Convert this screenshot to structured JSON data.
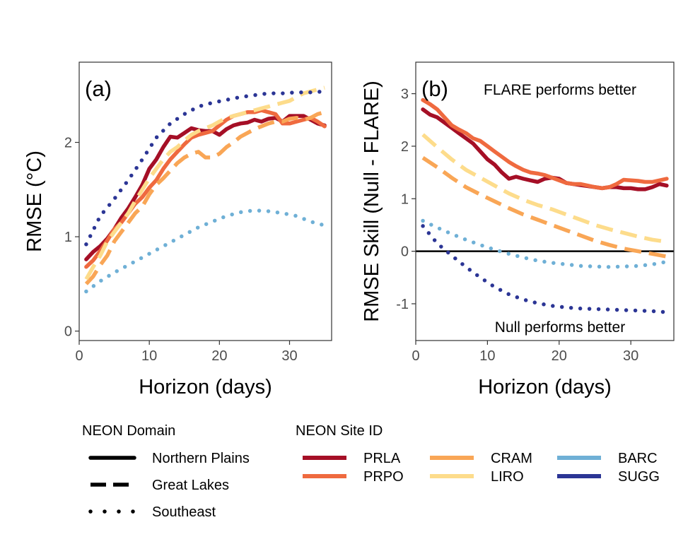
{
  "palette": {
    "PRLA": "#a50f26",
    "PRPO": "#ef6a3f",
    "CRAM": "#f9a656",
    "LIRO": "#fddc8b",
    "BARC": "#6fb0d6",
    "SUGG": "#2b3595"
  },
  "chart_data": [
    {
      "type": "line",
      "panel_label": "(a)",
      "xlabel": "Horizon (days)",
      "ylabel": "RMSE (°C)",
      "xlim": [
        0,
        36
      ],
      "ylim": [
        -0.1,
        2.85
      ],
      "xticks": [
        0,
        10,
        20,
        30
      ],
      "yticks": [
        0,
        1,
        2
      ],
      "grid": false,
      "series": [
        {
          "name": "PRLA",
          "domain": "Northern Plains",
          "style": "solid",
          "x": [
            1,
            2,
            3,
            4,
            5,
            6,
            7,
            8,
            9,
            10,
            11,
            12,
            13,
            14,
            15,
            16,
            17,
            18,
            19,
            20,
            21,
            22,
            23,
            24,
            25,
            26,
            27,
            28,
            29,
            30,
            31,
            32,
            33,
            34,
            35
          ],
          "y": [
            0.76,
            0.84,
            0.9,
            0.98,
            1.08,
            1.2,
            1.3,
            1.42,
            1.55,
            1.72,
            1.82,
            1.95,
            2.06,
            2.05,
            2.1,
            2.15,
            2.13,
            2.12,
            2.12,
            2.08,
            2.14,
            2.18,
            2.2,
            2.21,
            2.24,
            2.22,
            2.25,
            2.26,
            2.22,
            2.28,
            2.28,
            2.28,
            2.24,
            2.2,
            2.18
          ]
        },
        {
          "name": "PRPO",
          "domain": "Northern Plains",
          "style": "solid",
          "x": [
            1,
            2,
            3,
            4,
            5,
            6,
            7,
            8,
            9,
            10,
            11,
            12,
            13,
            14,
            15,
            16,
            17,
            18,
            19,
            20,
            21,
            22,
            23,
            24,
            25,
            26,
            27,
            28,
            29,
            30,
            31,
            32,
            33,
            34,
            35
          ],
          "y": [
            0.68,
            0.75,
            0.85,
            0.96,
            1.08,
            1.15,
            1.25,
            1.35,
            1.42,
            1.52,
            1.6,
            1.72,
            1.82,
            1.9,
            1.98,
            2.05,
            2.08,
            2.1,
            2.12,
            2.18,
            2.24,
            2.28,
            2.3,
            2.32,
            2.32,
            2.34,
            2.32,
            2.3,
            2.2,
            2.2,
            2.22,
            2.24,
            2.26,
            2.22,
            2.17
          ]
        },
        {
          "name": "CRAM",
          "domain": "Great Lakes",
          "style": "dashed",
          "x": [
            1,
            2,
            3,
            4,
            5,
            6,
            7,
            8,
            9,
            10,
            11,
            12,
            13,
            14,
            15,
            16,
            17,
            18,
            19,
            20,
            21,
            22,
            23,
            24,
            25,
            26,
            27,
            28,
            29,
            30,
            31,
            32,
            33,
            34,
            35
          ],
          "y": [
            0.5,
            0.58,
            0.7,
            0.8,
            0.95,
            1.05,
            1.15,
            1.25,
            1.32,
            1.45,
            1.55,
            1.62,
            1.7,
            1.78,
            1.84,
            1.88,
            1.9,
            1.84,
            1.84,
            1.88,
            1.95,
            2.0,
            2.06,
            2.1,
            2.14,
            2.17,
            2.2,
            2.22,
            2.22,
            2.25,
            2.26,
            2.24,
            2.26,
            2.3,
            2.32
          ]
        },
        {
          "name": "LIRO",
          "domain": "Great Lakes",
          "style": "dashed",
          "x": [
            1,
            2,
            3,
            4,
            5,
            6,
            7,
            8,
            9,
            10,
            11,
            12,
            13,
            14,
            15,
            16,
            17,
            18,
            19,
            20,
            21,
            22,
            23,
            24,
            25,
            26,
            27,
            28,
            29,
            30,
            31,
            32,
            33,
            34,
            35
          ],
          "y": [
            0.55,
            0.68,
            0.8,
            0.95,
            1.05,
            1.15,
            1.25,
            1.38,
            1.5,
            1.62,
            1.72,
            1.82,
            1.9,
            1.95,
            2.02,
            2.08,
            2.12,
            2.15,
            2.18,
            2.22,
            2.26,
            2.28,
            2.3,
            2.32,
            2.34,
            2.36,
            2.38,
            2.4,
            2.42,
            2.44,
            2.48,
            2.52,
            2.54,
            2.56,
            2.58
          ]
        },
        {
          "name": "BARC",
          "domain": "Southeast",
          "style": "dotted",
          "x": [
            1,
            3,
            5,
            7,
            9,
            11,
            13,
            15,
            17,
            19,
            21,
            23,
            25,
            27,
            29,
            31,
            33,
            35
          ],
          "y": [
            0.42,
            0.53,
            0.62,
            0.7,
            0.78,
            0.86,
            0.94,
            1.02,
            1.1,
            1.16,
            1.22,
            1.26,
            1.28,
            1.27,
            1.25,
            1.22,
            1.16,
            1.12
          ]
        },
        {
          "name": "SUGG",
          "domain": "Southeast",
          "style": "dotted",
          "x": [
            1,
            3,
            5,
            7,
            9,
            11,
            13,
            15,
            17,
            19,
            21,
            23,
            25,
            27,
            29,
            31,
            33,
            35
          ],
          "y": [
            0.92,
            1.22,
            1.4,
            1.6,
            1.82,
            2.05,
            2.2,
            2.3,
            2.38,
            2.42,
            2.45,
            2.48,
            2.5,
            2.52,
            2.52,
            2.53,
            2.53,
            2.54
          ]
        }
      ]
    },
    {
      "type": "line",
      "panel_label": "(b)",
      "xlabel": "Horizon (days)",
      "ylabel": "RMSE Skill (Null - FLARE)",
      "xlim": [
        0,
        36
      ],
      "ylim": [
        -1.7,
        3.6
      ],
      "xticks": [
        0,
        10,
        20,
        30
      ],
      "yticks": [
        -1,
        0,
        1,
        2,
        3
      ],
      "grid": false,
      "reference_line_y": 0,
      "annotations": [
        "FLARE performs better",
        "Null performs better"
      ],
      "series": [
        {
          "name": "PRLA",
          "domain": "Northern Plains",
          "style": "solid",
          "x": [
            1,
            2,
            3,
            4,
            5,
            6,
            7,
            8,
            9,
            10,
            11,
            12,
            13,
            14,
            15,
            16,
            17,
            18,
            19,
            20,
            21,
            22,
            23,
            24,
            25,
            26,
            27,
            28,
            29,
            30,
            31,
            32,
            33,
            34,
            35
          ],
          "y": [
            2.7,
            2.6,
            2.55,
            2.45,
            2.35,
            2.25,
            2.15,
            2.05,
            1.9,
            1.75,
            1.65,
            1.5,
            1.38,
            1.42,
            1.38,
            1.35,
            1.32,
            1.38,
            1.4,
            1.38,
            1.3,
            1.28,
            1.26,
            1.24,
            1.22,
            1.2,
            1.22,
            1.22,
            1.2,
            1.2,
            1.18,
            1.18,
            1.22,
            1.28,
            1.25
          ]
        },
        {
          "name": "PRPO",
          "domain": "Northern Plains",
          "style": "solid",
          "x": [
            1,
            2,
            3,
            4,
            5,
            6,
            7,
            8,
            9,
            10,
            11,
            12,
            13,
            14,
            15,
            16,
            17,
            18,
            19,
            20,
            21,
            22,
            23,
            24,
            25,
            26,
            27,
            28,
            29,
            30,
            31,
            32,
            33,
            34,
            35
          ],
          "y": [
            2.88,
            2.8,
            2.7,
            2.55,
            2.4,
            2.32,
            2.25,
            2.15,
            2.1,
            2.0,
            1.9,
            1.8,
            1.7,
            1.62,
            1.55,
            1.5,
            1.48,
            1.45,
            1.4,
            1.35,
            1.3,
            1.28,
            1.28,
            1.25,
            1.22,
            1.2,
            1.22,
            1.28,
            1.36,
            1.35,
            1.34,
            1.32,
            1.32,
            1.35,
            1.38
          ]
        },
        {
          "name": "CRAM",
          "domain": "Great Lakes",
          "style": "dashed",
          "x": [
            1,
            3,
            5,
            7,
            9,
            11,
            13,
            15,
            17,
            19,
            21,
            23,
            25,
            27,
            29,
            31,
            33,
            35
          ],
          "y": [
            1.78,
            1.6,
            1.4,
            1.22,
            1.08,
            0.95,
            0.82,
            0.7,
            0.6,
            0.5,
            0.4,
            0.3,
            0.2,
            0.12,
            0.05,
            0.0,
            -0.05,
            -0.1
          ]
        },
        {
          "name": "LIRO",
          "domain": "Great Lakes",
          "style": "dashed",
          "x": [
            1,
            3,
            5,
            7,
            9,
            11,
            13,
            15,
            17,
            19,
            21,
            23,
            25,
            27,
            29,
            31,
            33,
            35
          ],
          "y": [
            2.22,
            1.98,
            1.75,
            1.55,
            1.4,
            1.25,
            1.1,
            0.98,
            0.88,
            0.8,
            0.7,
            0.6,
            0.5,
            0.42,
            0.35,
            0.28,
            0.22,
            0.18
          ]
        },
        {
          "name": "BARC",
          "domain": "Southeast",
          "style": "dotted",
          "x": [
            1,
            3,
            5,
            7,
            9,
            11,
            13,
            15,
            17,
            19,
            21,
            23,
            25,
            27,
            29,
            31,
            33,
            35
          ],
          "y": [
            0.58,
            0.45,
            0.33,
            0.22,
            0.12,
            0.03,
            -0.05,
            -0.12,
            -0.18,
            -0.22,
            -0.25,
            -0.28,
            -0.29,
            -0.3,
            -0.29,
            -0.28,
            -0.25,
            -0.2
          ]
        },
        {
          "name": "SUGG",
          "domain": "Southeast",
          "style": "dotted",
          "x": [
            1,
            3,
            5,
            7,
            9,
            11,
            13,
            15,
            17,
            19,
            21,
            23,
            25,
            27,
            29,
            31,
            33,
            35
          ],
          "y": [
            0.48,
            0.15,
            -0.08,
            -0.3,
            -0.5,
            -0.68,
            -0.82,
            -0.92,
            -0.99,
            -1.04,
            -1.07,
            -1.09,
            -1.1,
            -1.11,
            -1.12,
            -1.13,
            -1.14,
            -1.16
          ]
        }
      ]
    }
  ],
  "legend": {
    "domain_title": "NEON Domain",
    "domains": [
      {
        "label": "Northern Plains",
        "style": "solid"
      },
      {
        "label": "Great Lakes",
        "style": "dashed"
      },
      {
        "label": "Southeast",
        "style": "dotted"
      }
    ],
    "site_title": "NEON Site ID",
    "sites": [
      {
        "label": "PRLA"
      },
      {
        "label": "PRPO"
      },
      {
        "label": "CRAM"
      },
      {
        "label": "LIRO"
      },
      {
        "label": "BARC"
      },
      {
        "label": "SUGG"
      }
    ]
  }
}
